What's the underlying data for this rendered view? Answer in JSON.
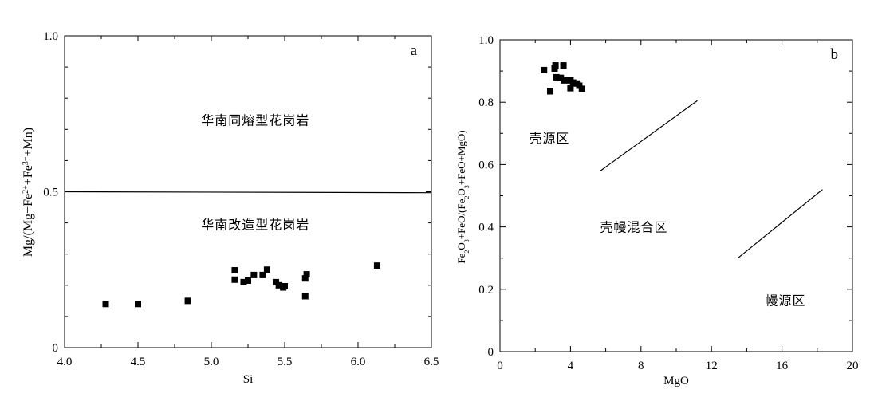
{
  "chart_data": [
    {
      "type": "scatter",
      "panel_letter": "a",
      "xlabel": "Si",
      "ylabel_parts": [
        "Mg/(Mg+Fe",
        "2+",
        "+Fe",
        "3+",
        "+Mn)"
      ],
      "xlim": [
        4.0,
        6.5
      ],
      "ylim": [
        0,
        1.0
      ],
      "x_ticks": [
        "4.0",
        "4.5",
        "5.0",
        "5.5",
        "6.0",
        "6.5"
      ],
      "x_tick_values": [
        4.0,
        4.5,
        5.0,
        5.5,
        6.0,
        6.5
      ],
      "y_ticks": [
        "0",
        "0.5",
        "1.0"
      ],
      "y_tick_values": [
        0,
        0.5,
        1.0
      ],
      "grid": false,
      "lines": [
        {
          "x": [
            4.0,
            6.5
          ],
          "y": [
            0.5,
            0.497
          ]
        }
      ],
      "region_labels": [
        {
          "text": "华南同熔型花岗岩",
          "x": 5.3,
          "y": 0.715
        },
        {
          "text": "华南改造型花岗岩",
          "x": 5.3,
          "y": 0.38
        }
      ],
      "series": [
        {
          "marker": "square",
          "color": "#000000",
          "points": [
            [
              4.28,
              0.14
            ],
            [
              4.5,
              0.14
            ],
            [
              4.84,
              0.15
            ],
            [
              5.16,
              0.248
            ],
            [
              5.16,
              0.218
            ],
            [
              5.22,
              0.21
            ],
            [
              5.25,
              0.215
            ],
            [
              5.29,
              0.233
            ],
            [
              5.35,
              0.233
            ],
            [
              5.38,
              0.25
            ],
            [
              5.44,
              0.21
            ],
            [
              5.46,
              0.2
            ],
            [
              5.49,
              0.193
            ],
            [
              5.5,
              0.197
            ],
            [
              5.64,
              0.165
            ],
            [
              5.64,
              0.222
            ],
            [
              5.65,
              0.235
            ],
            [
              6.13,
              0.263
            ]
          ]
        }
      ]
    },
    {
      "type": "scatter",
      "panel_letter": "b",
      "xlabel": "MgO",
      "ylabel_parts": [
        "Fe",
        "2",
        "O",
        "3",
        "+FeO/(Fe",
        "2",
        "O",
        "3",
        "+FeO+MgO)"
      ],
      "xlim": [
        0,
        20
      ],
      "ylim": [
        0,
        1.0
      ],
      "x_ticks": [
        "0",
        "4",
        "8",
        "12",
        "16",
        "20"
      ],
      "x_tick_values": [
        0,
        4,
        8,
        12,
        16,
        20
      ],
      "y_ticks": [
        "0",
        "0.2",
        "0.4",
        "0.6",
        "0.8",
        "1.0"
      ],
      "y_tick_values": [
        0,
        0.2,
        0.4,
        0.6,
        0.8,
        1.0
      ],
      "grid": false,
      "lines": [
        {
          "x": [
            5.7,
            11.2
          ],
          "y": [
            0.58,
            0.805
          ]
        },
        {
          "x": [
            13.5,
            18.3
          ],
          "y": [
            0.3,
            0.52
          ]
        }
      ],
      "region_labels": [
        {
          "text": "壳源区",
          "x": 2.8,
          "y": 0.67
        },
        {
          "text": "壳幔混合区",
          "x": 7.6,
          "y": 0.385
        },
        {
          "text": "幔源区",
          "x": 16.2,
          "y": 0.15
        }
      ],
      "series": [
        {
          "marker": "square",
          "color": "#000000",
          "points": [
            [
              2.5,
              0.903
            ],
            [
              3.1,
              0.908
            ],
            [
              3.15,
              0.918
            ],
            [
              3.6,
              0.918
            ],
            [
              3.2,
              0.88
            ],
            [
              3.45,
              0.878
            ],
            [
              3.65,
              0.87
            ],
            [
              2.85,
              0.835
            ],
            [
              4.0,
              0.87
            ],
            [
              4.15,
              0.863
            ],
            [
              4.35,
              0.86
            ],
            [
              4.5,
              0.853
            ],
            [
              4.65,
              0.843
            ],
            [
              4.0,
              0.845
            ]
          ]
        }
      ]
    }
  ]
}
